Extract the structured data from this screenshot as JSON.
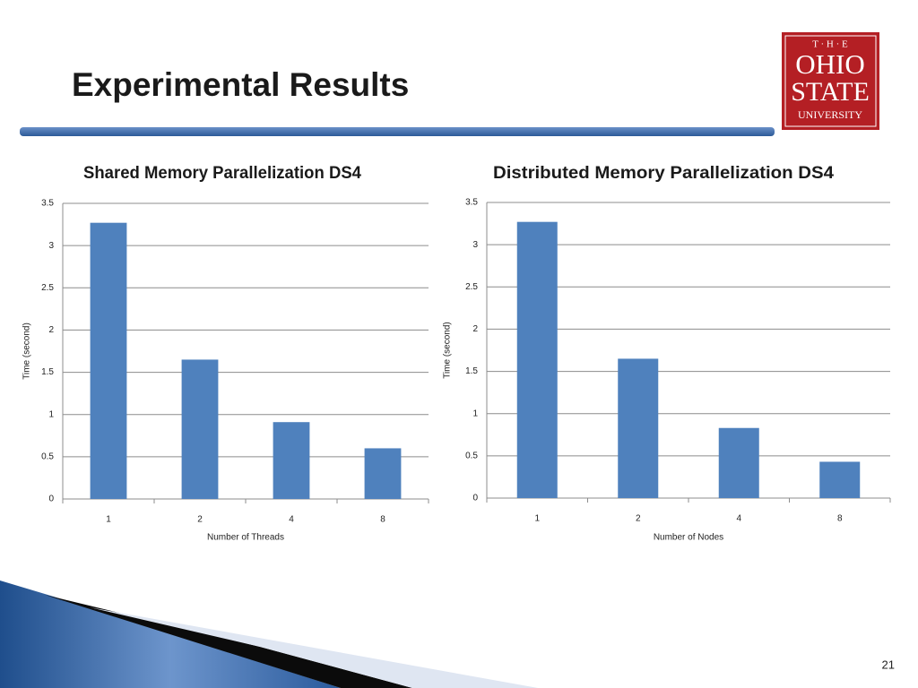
{
  "slide": {
    "title": "Experimental Results",
    "page_number": "21",
    "logo_lines": [
      "T · H · E",
      "OHIO",
      "STATE",
      "UNIVERSITY"
    ]
  },
  "chart_data": [
    {
      "type": "bar",
      "title": "Shared Memory Parallelization DS4",
      "x_label": "Number of Threads",
      "y_label": "Time (second)",
      "categories": [
        "1",
        "2",
        "4",
        "8"
      ],
      "values": [
        3.27,
        1.65,
        0.91,
        0.6
      ],
      "color": "#4f81bd",
      "ylim": [
        0,
        3.5
      ],
      "yticks": [
        0,
        0.5,
        1,
        1.5,
        2,
        2.5,
        3,
        3.5
      ],
      "grid": true
    },
    {
      "type": "bar",
      "title": "Distributed Memory Parallelization DS4",
      "x_label": "Number of Nodes",
      "y_label": "Time (second)",
      "categories": [
        "1",
        "2",
        "4",
        "8"
      ],
      "values": [
        3.27,
        1.65,
        0.83,
        0.43
      ],
      "color": "#4f81bd",
      "ylim": [
        0,
        3.5
      ],
      "yticks": [
        0,
        0.5,
        1,
        1.5,
        2,
        2.5,
        3,
        3.5
      ],
      "grid": true
    }
  ]
}
